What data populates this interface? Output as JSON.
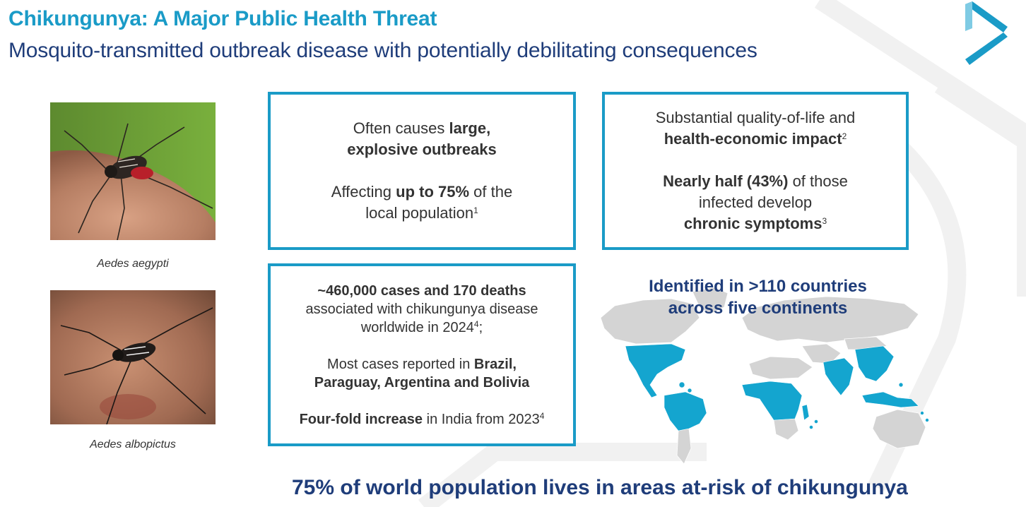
{
  "header": {
    "title": "Chikungunya: A Major Public Health Threat",
    "subtitle": "Mosquito-transmitted outbreak disease with potentially debilitating consequences"
  },
  "images": [
    {
      "icon": "mosquito-photo",
      "caption": "Aedes aegypti"
    },
    {
      "icon": "mosquito-photo",
      "caption": "Aedes albopictus"
    }
  ],
  "box_outbreaks": {
    "line1_pre": "Often causes ",
    "line1_bold": "large,",
    "line2_bold": "explosive outbreaks",
    "line3_pre": "Affecting ",
    "line3_bold": "up to 75%",
    "line3_post": " of the",
    "line4": "local population",
    "line4_sup": "1"
  },
  "box_impact": {
    "line1": "Substantial quality-of-life and",
    "line2_bold": "health-economic impact",
    "line2_sup": "2",
    "line3_bold": "Nearly half (43%)",
    "line3_post": " of those",
    "line4": "infected develop",
    "line5_bold": "chronic symptoms",
    "line5_sup": "3"
  },
  "box_cases": {
    "line1_bold": "~460,000 cases and 170 deaths",
    "line2": "associated with chikungunya disease",
    "line3": "worldwide in 2024",
    "line3_sup": "4",
    "line3_post": ";",
    "line4_pre": "Most cases reported in ",
    "line4_bold": "Brazil,",
    "line5_bold": "Paraguay, Argentina and Bolivia",
    "line6_bold": "Four-fold increase",
    "line6_post": " in India from 2023",
    "line6_sup": "4"
  },
  "map": {
    "title_line1": "Identified in >110 countries",
    "title_line2": "across five continents",
    "icon": "world-map",
    "colors": {
      "affected": "#14a5cf",
      "other": "#d4d4d4"
    }
  },
  "footer": {
    "stat": "75% of world population lives in areas at-risk of chikungunya"
  },
  "colors": {
    "accent": "#1a9bc7",
    "navy": "#1f3d7a"
  }
}
